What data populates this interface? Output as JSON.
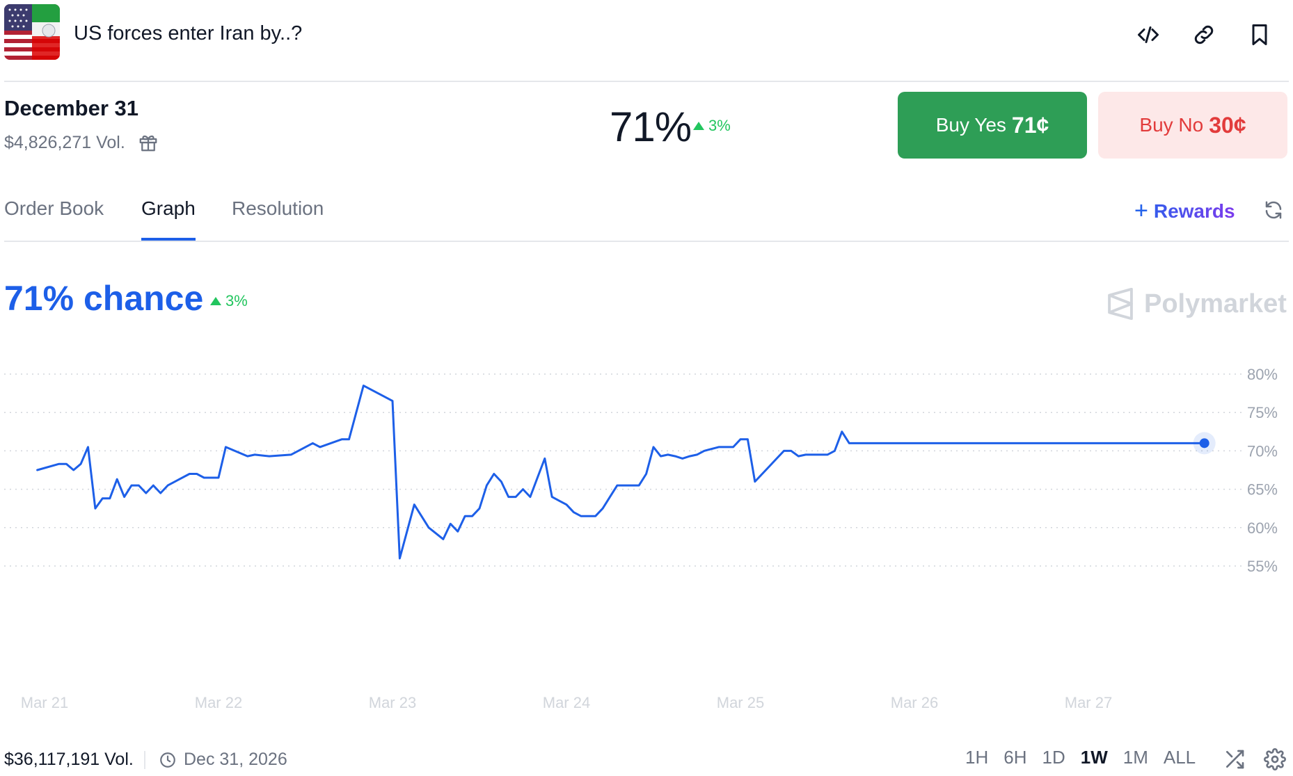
{
  "header": {
    "title": "US forces enter Iran by..?",
    "thumbnail": "us-iran-flag-thumbnail",
    "actions": [
      "embed-code-icon",
      "link-icon",
      "bookmark-icon"
    ]
  },
  "outcome": {
    "date": "December 31",
    "volume": "$4,826,271 Vol.",
    "percent": "71%",
    "delta": "3%",
    "buy_yes_label": "Buy Yes",
    "buy_yes_price": "71¢",
    "buy_no_label": "Buy No",
    "buy_no_price": "30¢"
  },
  "tabs": {
    "items": [
      {
        "label": "Order Book",
        "active": false
      },
      {
        "label": "Graph",
        "active": true
      },
      {
        "label": "Resolution",
        "active": false
      }
    ],
    "rewards_label": "Rewards"
  },
  "chance": {
    "text": "71% chance",
    "delta": "3%"
  },
  "watermark": "Polymarket",
  "colors": {
    "accent_blue": "#1d5fe8",
    "positive_green": "#22c55e",
    "buy_yes_bg": "#2e9e56",
    "buy_no_bg": "#fde8e8",
    "buy_no_text": "#e23b3b"
  },
  "chart_data": {
    "type": "line",
    "title": "",
    "xlabel": "",
    "ylabel": "",
    "x_ticks": [
      "Mar 21",
      "Mar 22",
      "Mar 23",
      "Mar 24",
      "Mar 25",
      "Mar 26",
      "Mar 27"
    ],
    "y_ticks": [
      "80%",
      "75%",
      "70%",
      "65%",
      "60%",
      "55%"
    ],
    "ylim": [
      55,
      80
    ],
    "grid": true,
    "series": [
      {
        "color": "#1d5fe8",
        "x": [
          "Mar 20 23:00",
          "Mar 21 02:00",
          "Mar 21 03:00",
          "Mar 21 04:00",
          "Mar 21 05:00",
          "Mar 21 06:00",
          "Mar 21 07:00",
          "Mar 21 08:00",
          "Mar 21 09:00",
          "Mar 21 10:00",
          "Mar 21 11:00",
          "Mar 21 12:00",
          "Mar 21 13:00",
          "Mar 21 14:00",
          "Mar 21 15:00",
          "Mar 21 16:00",
          "Mar 21 17:00",
          "Mar 21 20:00",
          "Mar 21 21:00",
          "Mar 21 22:00",
          "Mar 21 23:00",
          "Mar 22 00:00",
          "Mar 22 01:00",
          "Mar 22 04:00",
          "Mar 22 05:00",
          "Mar 22 07:00",
          "Mar 22 10:00",
          "Mar 22 11:00",
          "Mar 22 13:00",
          "Mar 22 14:00",
          "Mar 22 17:00",
          "Mar 22 18:00",
          "Mar 22 20:00",
          "Mar 23 00:00",
          "Mar 23 01:00",
          "Mar 23 03:00",
          "Mar 23 05:00",
          "Mar 23 07:00",
          "Mar 23 08:00",
          "Mar 23 09:00",
          "Mar 23 10:00",
          "Mar 23 11:00",
          "Mar 23 12:00",
          "Mar 23 13:00",
          "Mar 23 14:00",
          "Mar 23 15:00",
          "Mar 23 16:00",
          "Mar 23 17:00",
          "Mar 23 18:00",
          "Mar 23 19:00",
          "Mar 23 20:00",
          "Mar 23 21:00",
          "Mar 23 22:00",
          "Mar 23 23:00",
          "Mar 24 00:00",
          "Mar 24 01:00",
          "Mar 24 02:00",
          "Mar 24 03:00",
          "Mar 24 04:00",
          "Mar 24 05:00",
          "Mar 24 06:00",
          "Mar 24 07:00",
          "Mar 24 10:00",
          "Mar 24 11:00",
          "Mar 24 12:00",
          "Mar 24 13:00",
          "Mar 24 14:00",
          "Mar 24 15:00",
          "Mar 24 16:00",
          "Mar 24 17:00",
          "Mar 24 18:00",
          "Mar 24 19:00",
          "Mar 24 21:00",
          "Mar 24 22:00",
          "Mar 24 23:00",
          "Mar 25 00:00",
          "Mar 25 01:00",
          "Mar 25 02:00",
          "Mar 25 03:00",
          "Mar 25 04:00",
          "Mar 25 05:00",
          "Mar 25 06:00",
          "Mar 25 07:00",
          "Mar 25 08:00",
          "Mar 25 09:00",
          "Mar 25 12:00",
          "Mar 25 13:00",
          "Mar 25 14:00",
          "Mar 25 15:00",
          "Mar 25 17:00",
          "Mar 25 18:00",
          "Mar 25 19:00",
          "Mar 25 20:00",
          "Mar 25 21:00",
          "Mar 25 22:00",
          "Mar 25 23:00",
          "Mar 26 00:00",
          "Mar 26 01:00",
          "Mar 26 02:00",
          "Mar 26 03:00",
          "Mar 26 04:00",
          "Mar 26 05:00",
          "Mar 26 06:00",
          "Mar 26 07:00",
          "Mar 26 08:00",
          "Mar 26 09:00",
          "Mar 26 12:00",
          "Mar 26 15:00",
          "Mar 26 18:00",
          "Mar 26 19:00",
          "Mar 26 20:00",
          "Mar 26 21:00",
          "Mar 27 00:00",
          "Mar 27 01:00",
          "Mar 27 02:00",
          "Mar 27 03:00",
          "Mar 27 04:00",
          "Mar 27 05:00",
          "Mar 27 06:00",
          "Mar 27 07:00",
          "Mar 27 08:00",
          "Mar 27 09:00",
          "Mar 27 10:00",
          "Mar 27 11:00",
          "Mar 27 12:00",
          "Mar 27 13:00",
          "Mar 27 14:00",
          "Mar 27 15:00",
          "Mar 27 16:00"
        ],
        "values": [
          67.5,
          68.3,
          68.3,
          67.5,
          68.3,
          70.5,
          62.5,
          63.8,
          63.8,
          66.3,
          64.0,
          65.5,
          65.5,
          64.5,
          65.5,
          64.5,
          65.5,
          67.0,
          67.0,
          66.5,
          66.5,
          66.5,
          70.5,
          69.3,
          69.5,
          69.3,
          69.5,
          70.0,
          71.0,
          70.5,
          71.5,
          71.5,
          78.5,
          76.5,
          56.0,
          63.0,
          60.0,
          58.5,
          60.5,
          59.5,
          61.5,
          61.5,
          62.5,
          65.5,
          67.0,
          66.0,
          64.0,
          64.0,
          65.0,
          64.0,
          66.5,
          69.0,
          64.0,
          63.5,
          63.0,
          62.0,
          61.5,
          61.5,
          61.5,
          62.5,
          64.0,
          65.5,
          65.5,
          67.0,
          70.5,
          69.3,
          69.5,
          69.3,
          69.0,
          69.3,
          69.5,
          70.0,
          70.5,
          70.5,
          70.5,
          71.5,
          71.5,
          66.0,
          67.0,
          68.0,
          69.0,
          70.0,
          70.0,
          69.3,
          69.5,
          69.5,
          70.0,
          72.5,
          71.0,
          71.0,
          71.0,
          71.0,
          71.0,
          71.0,
          71.0,
          71.0,
          71.0,
          71.0,
          71.0,
          71.0,
          71.0,
          71.0,
          71.0,
          71.0,
          71.0,
          71.0,
          71.0,
          71.0,
          71.0,
          71.0,
          71.0,
          71.0,
          71.0,
          71.0,
          71.0,
          71.0,
          71.0,
          71.0,
          71.0,
          71.0,
          71.0,
          71.0,
          71.0,
          71.0,
          71.0,
          71.0,
          71.0,
          71.0,
          71.0
        ]
      }
    ]
  },
  "footer": {
    "total_volume": "$36,117,191 Vol.",
    "end_date": "Dec 31, 2026",
    "ranges": [
      "1H",
      "6H",
      "1D",
      "1W",
      "1M",
      "ALL"
    ],
    "active_range": "1W"
  }
}
